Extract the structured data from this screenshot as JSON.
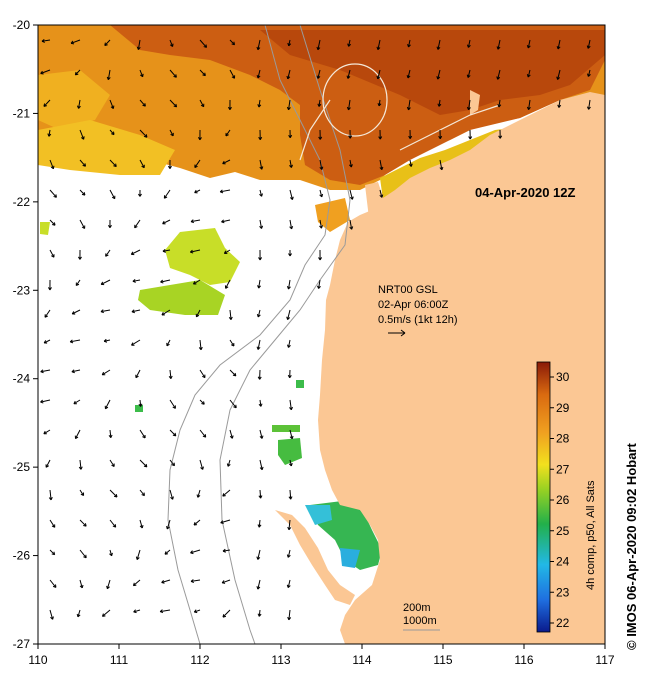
{
  "map": {
    "timestamp": "04-Apr-2020 12Z",
    "x_ticks": [
      "110",
      "111",
      "112",
      "113",
      "114",
      "115",
      "116",
      "117"
    ],
    "y_ticks": [
      "-20",
      "-21",
      "-22",
      "-23",
      "-24",
      "-25",
      "-26",
      "-27"
    ],
    "legend_lines": [
      "NRT00 GSL",
      "02-Apr 06:00Z",
      "0.5m/s (1kt 12h)"
    ],
    "depth_labels": [
      "200m",
      "1000m"
    ],
    "colorbar": {
      "ticks": [
        "30",
        "29",
        "28",
        "27",
        "26",
        "25",
        "24",
        "23",
        "22"
      ],
      "title": "4h comp, p50, All Sats",
      "stops": [
        "#0a1a8c",
        "#1f6fe0",
        "#22b8e6",
        "#22b04a",
        "#9ad222",
        "#f2e01e",
        "#f0a020",
        "#d96a10",
        "#8a1a08"
      ]
    },
    "credit": "© IMOS 06-Apr-2020 09:02 Hobart",
    "colors": {
      "land": "#fbc794",
      "warm_sst": "#e08a14",
      "hot_sst": "#c5560f",
      "mid_sst": "#f0b020",
      "cool_sst": "#bfe024",
      "green_sst": "#3cbc4a",
      "cyan_sst": "#34c0d8",
      "isobath": "#9a9a9a",
      "contour": "#f4e8d8"
    }
  }
}
